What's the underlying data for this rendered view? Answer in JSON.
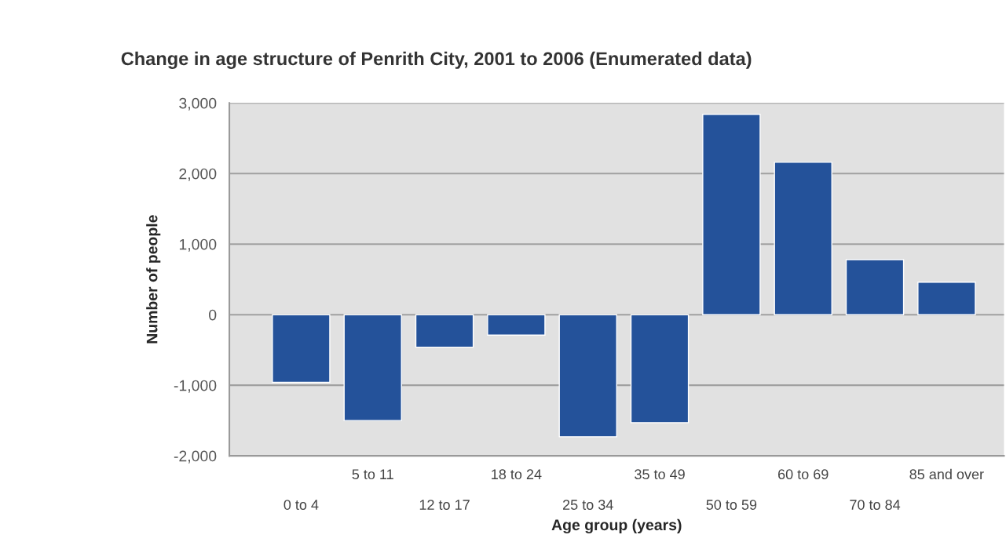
{
  "chart_data": {
    "type": "bar",
    "title": "Change in age structure of Penrith City, 2001 to 2006 (Enumerated data)",
    "xlabel": "Age group (years)",
    "ylabel": "Number of people",
    "categories": [
      "0 to 4",
      "5 to 11",
      "12 to 17",
      "18 to 24",
      "25 to 34",
      "35 to 49",
      "50 to 59",
      "60 to 69",
      "70 to 84",
      "85 and over"
    ],
    "values": [
      -960,
      -1500,
      -460,
      -290,
      -1730,
      -1530,
      2840,
      2160,
      780,
      460
    ],
    "color": "#24529a",
    "ylim": [
      -2000,
      3000
    ],
    "yticks": [
      {
        "value": -2000,
        "label": "-2,000"
      },
      {
        "value": -1000,
        "label": "-1,000"
      },
      {
        "value": 0,
        "label": "0"
      },
      {
        "value": 1000,
        "label": "1,000"
      },
      {
        "value": 2000,
        "label": "2,000"
      },
      {
        "value": 3000,
        "label": "3,000"
      }
    ],
    "grid": "y",
    "legend": false
  }
}
